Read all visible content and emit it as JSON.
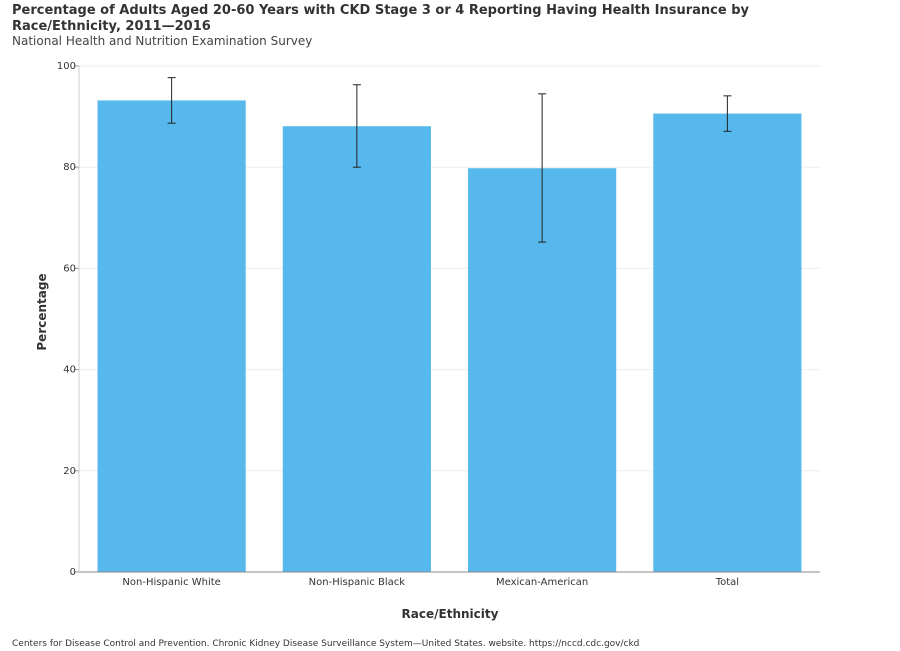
{
  "chart_data": {
    "type": "bar",
    "title": "Percentage of Adults Aged 20-60 Years with CKD Stage 3 or 4 Reporting Having Health Insurance by Race/Ethnicity, 2011—2016",
    "subtitle": "National Health and Nutrition Examination Survey",
    "xlabel": "Race/Ethnicity",
    "ylabel": "Percentage",
    "categories": [
      "Non-Hispanic White",
      "Non-Hispanic Black",
      "Mexican-American",
      "Total"
    ],
    "values": [
      93.2,
      88.1,
      79.8,
      90.6
    ],
    "error_low": [
      88.7,
      80.0,
      65.2,
      87.1
    ],
    "error_high": [
      97.7,
      96.3,
      94.5,
      94.1
    ],
    "ylim": [
      0,
      100
    ],
    "yticks": [
      0,
      20,
      40,
      60,
      80,
      100
    ],
    "grid": true,
    "bar_color": "#56b8ec"
  },
  "footer": "Centers for Disease Control and Prevention. Chronic Kidney Disease Surveillance System—United States. website. https://nccd.cdc.gov/ckd"
}
